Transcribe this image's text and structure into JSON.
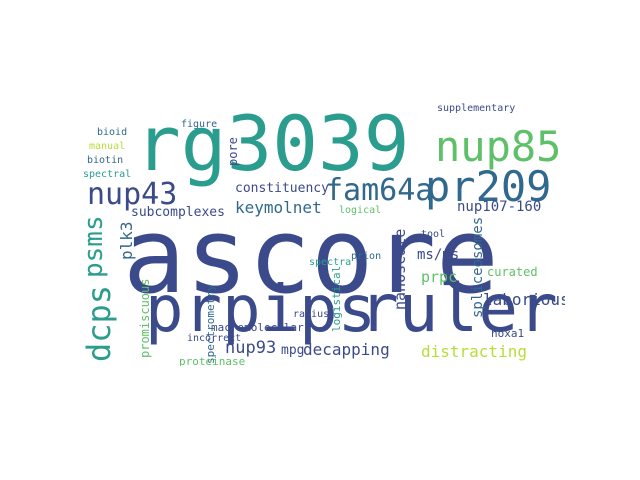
{
  "palette": {
    "navy": "#3b4a8a",
    "teal": "#2a9d8f",
    "green": "#5fc06a",
    "lime": "#b8dd3a",
    "purple": "#472d7b",
    "blue": "#31688e"
  },
  "words": {
    "ascore": "ascore",
    "rg3039": "rg3039",
    "ruler": "ruler",
    "prpips": "prpips",
    "nup85": "nup85",
    "pr209": "pr209",
    "nup43": "nup43",
    "fam64a": "fam64a",
    "dcps": "dcps",
    "psms": "psms",
    "keymolnet": "keymolnet",
    "laborious": "laborious",
    "decapping": "decapping",
    "distracting": "distracting",
    "nup93": "nup93",
    "mpg": "mpg",
    "constituency": "constituency",
    "nup107_160": "nup107-160",
    "subcomplexes": "subcomplexes",
    "nanoscale": "nanoscale",
    "spliceosomes": "spliceosomes",
    "prpc": "prpc",
    "ms_ms": "ms/ms",
    "plk3": "plk3",
    "curated": "curated",
    "hoxa1": "hoxa1",
    "macromolecular": "macromolecular",
    "proteinase": "proteinase",
    "promiscuous": "promiscuous",
    "spectrometry": "spectrometry",
    "incorrect": "incorrect",
    "supplementary": "supplementary",
    "figure": "figure",
    "bioid": "bioid",
    "manual": "manual",
    "biotin": "biotin",
    "spectral": "spectral",
    "radius": "radius",
    "prion": "prion",
    "spectra": "spectra",
    "logical": "logical",
    "logistical": "logistical",
    "pore": "pore",
    "tool": "tool"
  }
}
